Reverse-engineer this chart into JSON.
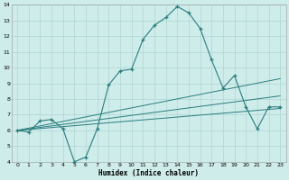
{
  "xlabel": "Humidex (Indice chaleur)",
  "xlim": [
    -0.5,
    23.5
  ],
  "ylim": [
    4,
    14
  ],
  "yticks": [
    4,
    5,
    6,
    7,
    8,
    9,
    10,
    11,
    12,
    13,
    14
  ],
  "xticks": [
    0,
    1,
    2,
    3,
    4,
    5,
    6,
    7,
    8,
    9,
    10,
    11,
    12,
    13,
    14,
    15,
    16,
    17,
    18,
    19,
    20,
    21,
    22,
    23
  ],
  "bg_color": "#ceecea",
  "line_color": "#2a7d7d",
  "grid_color": "#aed6d2",
  "curve1_x": [
    0,
    1,
    2,
    3,
    4,
    5,
    6,
    7,
    8,
    9,
    10,
    11,
    12,
    13,
    14,
    15,
    16,
    17,
    18,
    19,
    20,
    21,
    22,
    23
  ],
  "curve1_y": [
    6.0,
    5.9,
    6.6,
    6.7,
    6.1,
    4.0,
    4.3,
    6.1,
    8.9,
    9.8,
    9.9,
    11.8,
    12.7,
    13.2,
    13.9,
    13.5,
    12.5,
    10.5,
    8.7,
    9.5,
    7.5,
    6.1,
    7.5,
    7.5
  ],
  "line1_x": [
    0,
    23
  ],
  "line1_y": [
    6.0,
    7.4
  ],
  "line2_x": [
    0,
    23
  ],
  "line2_y": [
    6.0,
    8.2
  ],
  "line3_x": [
    0,
    23
  ],
  "line3_y": [
    6.0,
    9.3
  ]
}
